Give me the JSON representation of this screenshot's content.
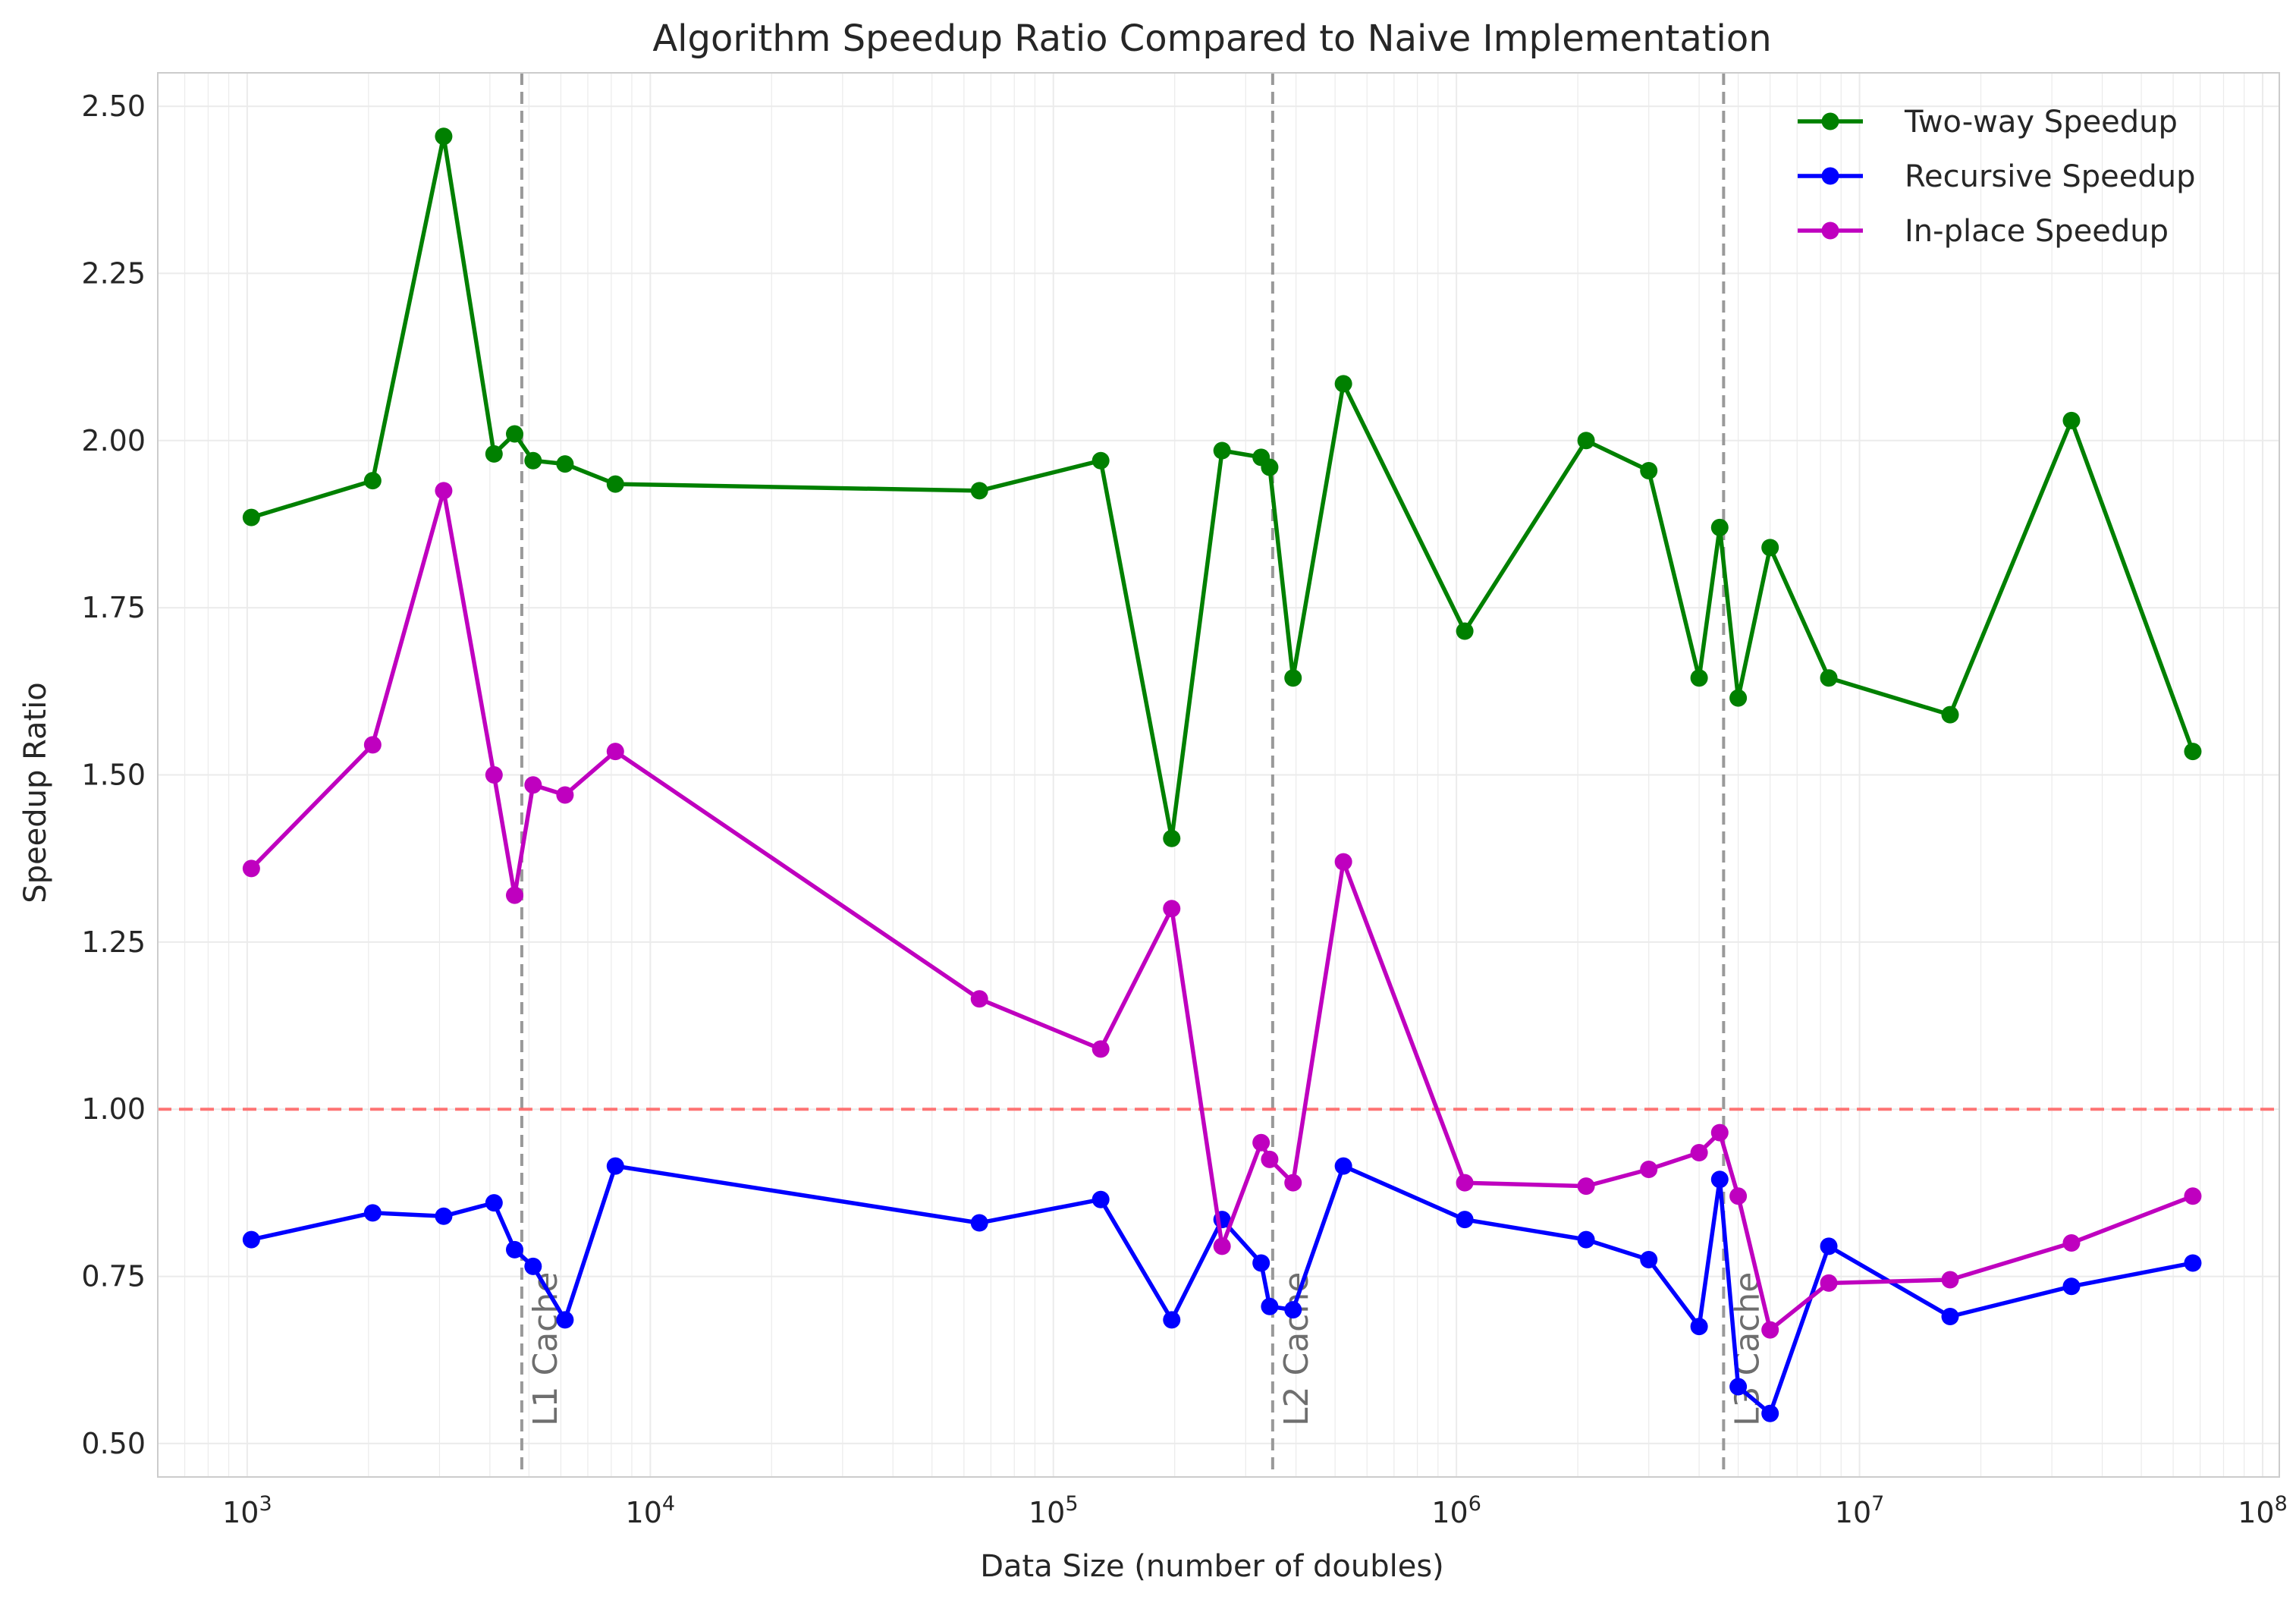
{
  "chart_data": {
    "type": "line",
    "title": "Algorithm Speedup Ratio Compared to Naive Implementation",
    "xlabel": "Data Size (number of doubles)",
    "ylabel": "Speedup Ratio",
    "xscale": "log",
    "xlim": [
      600,
      110000000
    ],
    "ylim": [
      0.45,
      2.55
    ],
    "x_ticks": [
      {
        "value": 1000,
        "base": "10",
        "exp": "3"
      },
      {
        "value": 10000,
        "base": "10",
        "exp": "4"
      },
      {
        "value": 100000,
        "base": "10",
        "exp": "5"
      },
      {
        "value": 1000000,
        "base": "10",
        "exp": "6"
      },
      {
        "value": 10000000,
        "base": "10",
        "exp": "7"
      },
      {
        "value": 100000000,
        "base": "10",
        "exp": "8"
      }
    ],
    "y_ticks": [
      "0.50",
      "0.75",
      "1.00",
      "1.25",
      "1.50",
      "1.75",
      "2.00",
      "2.25",
      "2.50"
    ],
    "grid": true,
    "legend_position": "top-right",
    "x": [
      1024,
      2048,
      3072,
      4096,
      4608,
      5120,
      6144,
      8192,
      65536,
      131072,
      196608,
      262144,
      327680,
      344064,
      393216,
      524288,
      1048576,
      2097152,
      3000000,
      4000000,
      4500000,
      5000000,
      6000000,
      8388608,
      16777216,
      33554432,
      67108864
    ],
    "series": [
      {
        "name": "Two-way Speedup",
        "color": "#008000",
        "values": [
          1.885,
          1.94,
          2.455,
          1.98,
          2.01,
          1.97,
          1.965,
          1.935,
          1.925,
          1.97,
          1.405,
          1.985,
          1.975,
          1.96,
          1.645,
          2.085,
          1.715,
          2.0,
          1.955,
          1.645,
          1.87,
          1.615,
          1.84,
          1.645,
          1.59,
          2.03,
          1.535
        ]
      },
      {
        "name": "Recursive Speedup",
        "color": "#0000ff",
        "values": [
          0.805,
          0.845,
          0.84,
          0.86,
          0.79,
          0.765,
          0.685,
          0.915,
          0.83,
          0.865,
          0.685,
          0.835,
          0.77,
          0.705,
          0.7,
          0.915,
          0.835,
          0.805,
          0.775,
          0.675,
          0.895,
          0.585,
          0.545,
          0.795,
          0.69,
          0.735,
          0.77
        ]
      },
      {
        "name": "In-place Speedup",
        "color": "#bf00bf",
        "values": [
          1.36,
          1.545,
          1.925,
          1.5,
          1.32,
          1.485,
          1.47,
          1.535,
          1.165,
          1.09,
          1.3,
          0.795,
          0.95,
          0.925,
          0.89,
          1.37,
          0.89,
          0.885,
          0.91,
          0.935,
          0.965,
          0.87,
          0.67,
          0.74,
          0.745,
          0.8,
          0.87
        ]
      }
    ],
    "reference_line": {
      "y": 1.0,
      "color": "#ff6666",
      "style": "dashed"
    },
    "cache_lines": [
      {
        "x": 4800,
        "label": "L1 Cache"
      },
      {
        "x": 350000,
        "label": "L2 Cache"
      },
      {
        "x": 4600000,
        "label": "L3 Cache"
      }
    ]
  }
}
